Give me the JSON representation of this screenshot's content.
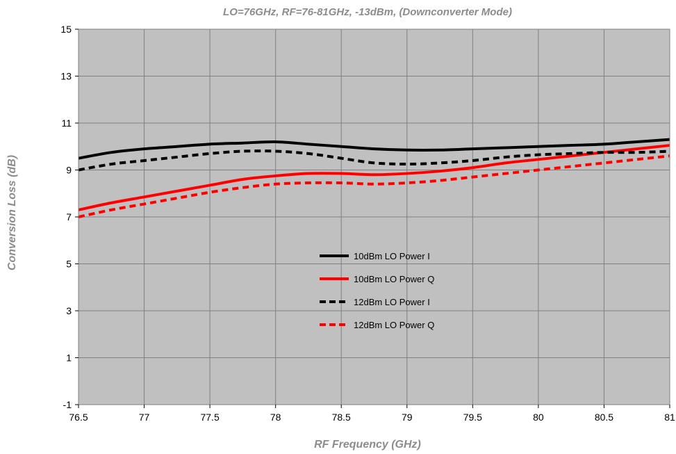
{
  "chart_data": {
    "type": "line",
    "title": "LO=76GHz, RF=76-81GHz, -13dBm, (Downconverter Mode)",
    "xlabel": "RF Frequency (GHz)",
    "ylabel": "Conversion Loss (dB)",
    "xlim": [
      76.5,
      81
    ],
    "ylim": [
      -1,
      15
    ],
    "x_ticks": [
      "76.5",
      "77",
      "77.5",
      "78",
      "78.5",
      "79",
      "79.5",
      "80",
      "80.5",
      "81"
    ],
    "y_ticks": [
      "-1",
      "1",
      "3",
      "5",
      "7",
      "9",
      "11",
      "13",
      "15"
    ],
    "grid": true,
    "plot_background": "#c0c0c0",
    "grid_color": "#808080",
    "legend_position": "center",
    "series": [
      {
        "name": "10dBm LO Power I",
        "color": "#000000",
        "dashed": false,
        "x": [
          76.5,
          76.75,
          77.0,
          77.25,
          77.5,
          77.75,
          78.0,
          78.25,
          78.5,
          78.75,
          79.0,
          79.25,
          79.5,
          79.75,
          80.0,
          80.25,
          80.5,
          80.75,
          81.0
        ],
        "y": [
          9.5,
          9.75,
          9.9,
          10.0,
          10.1,
          10.15,
          10.2,
          10.1,
          10.0,
          9.9,
          9.85,
          9.85,
          9.9,
          9.95,
          10.0,
          10.05,
          10.1,
          10.2,
          10.3
        ]
      },
      {
        "name": "10dBm LO Power Q",
        "color": "#ff0000",
        "dashed": false,
        "x": [
          76.5,
          76.75,
          77.0,
          77.25,
          77.5,
          77.75,
          78.0,
          78.25,
          78.5,
          78.75,
          79.0,
          79.25,
          79.5,
          79.75,
          80.0,
          80.25,
          80.5,
          80.75,
          81.0
        ],
        "y": [
          7.3,
          7.6,
          7.85,
          8.1,
          8.35,
          8.6,
          8.75,
          8.85,
          8.85,
          8.8,
          8.85,
          8.95,
          9.1,
          9.3,
          9.45,
          9.6,
          9.75,
          9.9,
          10.05
        ]
      },
      {
        "name": "12dBm LO Power I",
        "color": "#000000",
        "dashed": true,
        "x": [
          76.5,
          76.75,
          77.0,
          77.25,
          77.5,
          77.75,
          78.0,
          78.25,
          78.5,
          78.75,
          79.0,
          79.25,
          79.5,
          79.75,
          80.0,
          80.25,
          80.5,
          80.75,
          81.0
        ],
        "y": [
          9.0,
          9.25,
          9.4,
          9.55,
          9.7,
          9.8,
          9.8,
          9.7,
          9.5,
          9.3,
          9.25,
          9.3,
          9.4,
          9.55,
          9.65,
          9.7,
          9.75,
          9.75,
          9.8
        ]
      },
      {
        "name": "12dBm LO Power Q",
        "color": "#ff0000",
        "dashed": true,
        "x": [
          76.5,
          76.75,
          77.0,
          77.25,
          77.5,
          77.75,
          78.0,
          78.25,
          78.5,
          78.75,
          79.0,
          79.25,
          79.5,
          79.75,
          80.0,
          80.25,
          80.5,
          80.75,
          81.0
        ],
        "y": [
          7.0,
          7.3,
          7.55,
          7.8,
          8.05,
          8.25,
          8.4,
          8.45,
          8.45,
          8.4,
          8.45,
          8.55,
          8.7,
          8.85,
          9.0,
          9.15,
          9.3,
          9.45,
          9.6
        ]
      }
    ]
  }
}
